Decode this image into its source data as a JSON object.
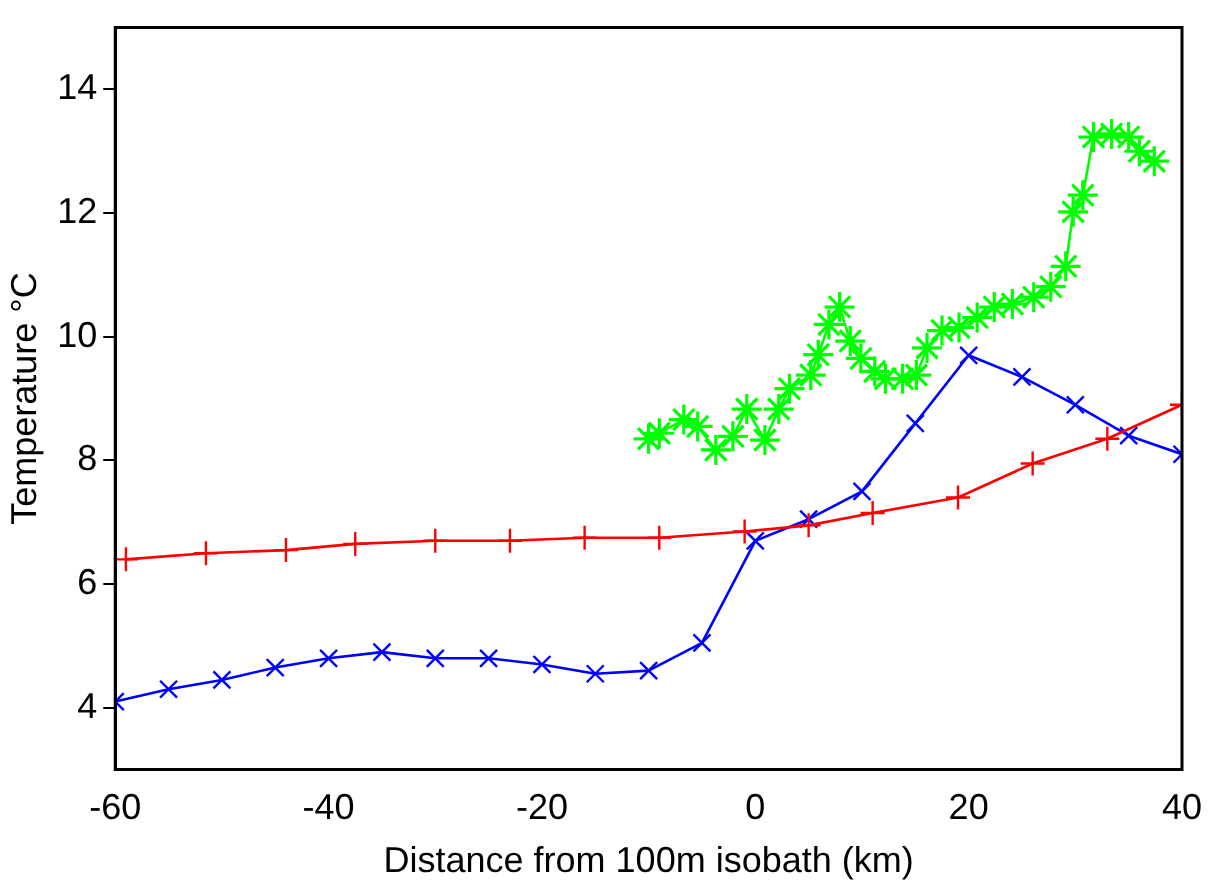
{
  "chart_data": {
    "type": "line",
    "xlabel": "Distance from 100m isobath (km)",
    "ylabel": "Temperature °C",
    "xlim": [
      -60,
      40
    ],
    "ylim": [
      3,
      15
    ],
    "xticks": [
      -60,
      -40,
      -20,
      0,
      20,
      40
    ],
    "yticks": [
      4,
      6,
      8,
      10,
      12,
      14
    ],
    "grid": false,
    "legend": false,
    "line_style": "solid",
    "series": [
      {
        "color": "#ff0000",
        "marker": "cross",
        "x": [
          -59,
          -51.5,
          -44,
          -37.5,
          -30,
          -23,
          -16,
          -9,
          -1,
          5,
          11,
          19,
          26,
          33,
          40
        ],
        "values": [
          6.4,
          6.5,
          6.55,
          6.65,
          6.7,
          6.7,
          6.75,
          6.75,
          6.85,
          6.95,
          7.15,
          7.4,
          7.95,
          8.35,
          8.9
        ]
      },
      {
        "color": "#0000ff",
        "marker": "cross-x",
        "x": [
          -60,
          -55,
          -50,
          -45,
          -40,
          -35,
          -30,
          -25,
          -20,
          -15,
          -10,
          -5,
          0,
          5,
          10,
          15,
          20,
          25,
          30,
          35,
          40
        ],
        "values": [
          4.1,
          4.3,
          4.45,
          4.65,
          4.8,
          4.9,
          4.8,
          4.8,
          4.7,
          4.55,
          4.6,
          5.05,
          6.7,
          7.05,
          7.5,
          8.6,
          9.7,
          9.35,
          8.9,
          8.4,
          8.1
        ]
      },
      {
        "color": "#00ff00",
        "marker": "cross-star",
        "x": [
          -10,
          -9,
          -6.7,
          -5.4,
          -3.7,
          -2.1,
          -0.8,
          0.9,
          2.2,
          3.2,
          5.2,
          5.9,
          6.9,
          7.9,
          8.9,
          9.9,
          11.2,
          12.2,
          13.8,
          15.1,
          16.1,
          17.5,
          19.1,
          20.8,
          22.4,
          24.1,
          26.1,
          27.7,
          29.1,
          29.8,
          30.7,
          31.7,
          33.4,
          35,
          36,
          37.4
        ],
        "values": [
          8.35,
          8.44,
          8.66,
          8.55,
          8.17,
          8.39,
          8.83,
          8.33,
          8.83,
          9.16,
          9.38,
          9.71,
          10.2,
          10.48,
          9.93,
          9.65,
          9.44,
          9.32,
          9.32,
          9.38,
          9.82,
          10.1,
          10.15,
          10.31,
          10.48,
          10.53,
          10.64,
          10.81,
          11.14,
          12.02,
          12.29,
          13.23,
          13.28,
          13.23,
          13.0,
          12.84
        ]
      }
    ]
  }
}
